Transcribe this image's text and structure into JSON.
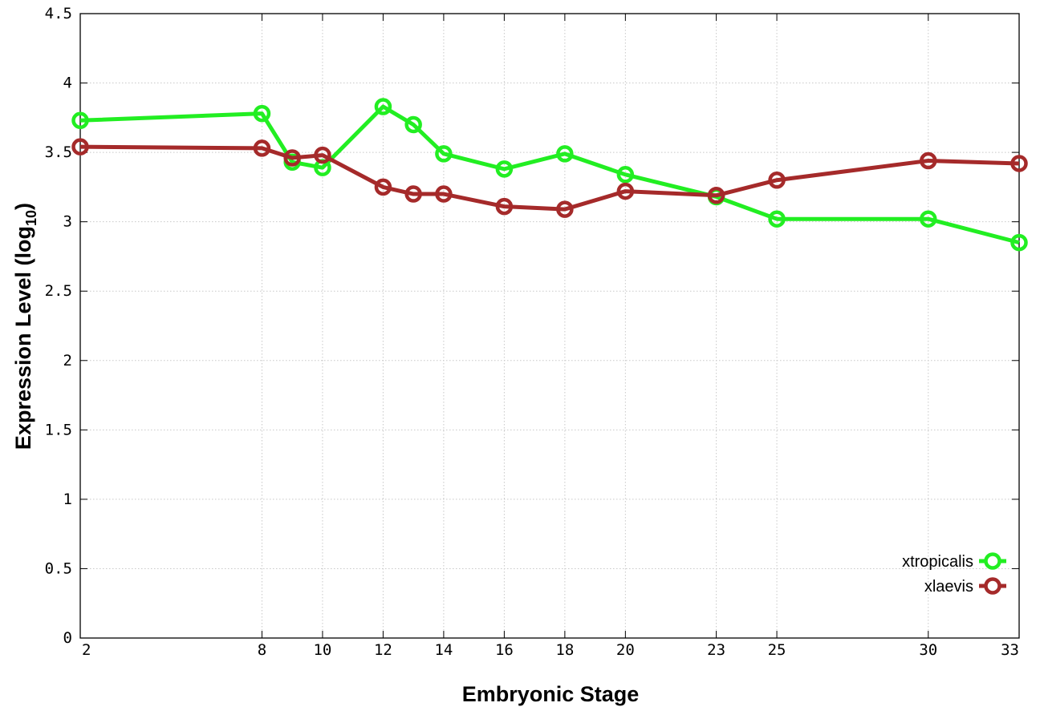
{
  "chart_data": {
    "type": "line",
    "title": "",
    "xlabel": "Embryonic Stage",
    "ylabel": "Expression Level (log",
    "ylabel_subscript": "10",
    "ylabel_close": ")",
    "x": [
      2,
      8,
      9,
      10,
      12,
      13,
      14,
      16,
      18,
      20,
      23,
      25,
      30,
      33
    ],
    "x_ticks": [
      2,
      8,
      10,
      12,
      14,
      16,
      18,
      20,
      23,
      25,
      30,
      33
    ],
    "x_tick_labels": [
      "2",
      "8",
      "10",
      "12",
      "14",
      "16",
      "18",
      "20",
      "23",
      "25",
      "30",
      "33"
    ],
    "xlim": [
      2,
      33
    ],
    "y_ticks": [
      0,
      0.5,
      1,
      1.5,
      2,
      2.5,
      3,
      3.5,
      4,
      4.5
    ],
    "y_tick_labels": [
      "0",
      "0.5",
      "1",
      "1.5",
      "2",
      "2.5",
      "3",
      "3.5",
      "4",
      "4.5"
    ],
    "ylim": [
      0,
      4.5
    ],
    "grid": true,
    "legend_position": "bottom-right",
    "series": [
      {
        "name": "xtropicalis",
        "color": "#22ee22",
        "marker": "open-circle",
        "values": [
          3.73,
          3.78,
          3.43,
          3.39,
          3.83,
          3.7,
          3.49,
          3.38,
          3.49,
          3.34,
          3.18,
          3.02,
          3.02,
          2.85
        ]
      },
      {
        "name": "xlaevis",
        "color": "#a52a2a",
        "marker": "open-circle",
        "values": [
          3.54,
          3.53,
          3.46,
          3.48,
          3.25,
          3.2,
          3.2,
          3.11,
          3.09,
          3.22,
          3.19,
          3.3,
          3.44,
          3.42
        ]
      }
    ]
  }
}
